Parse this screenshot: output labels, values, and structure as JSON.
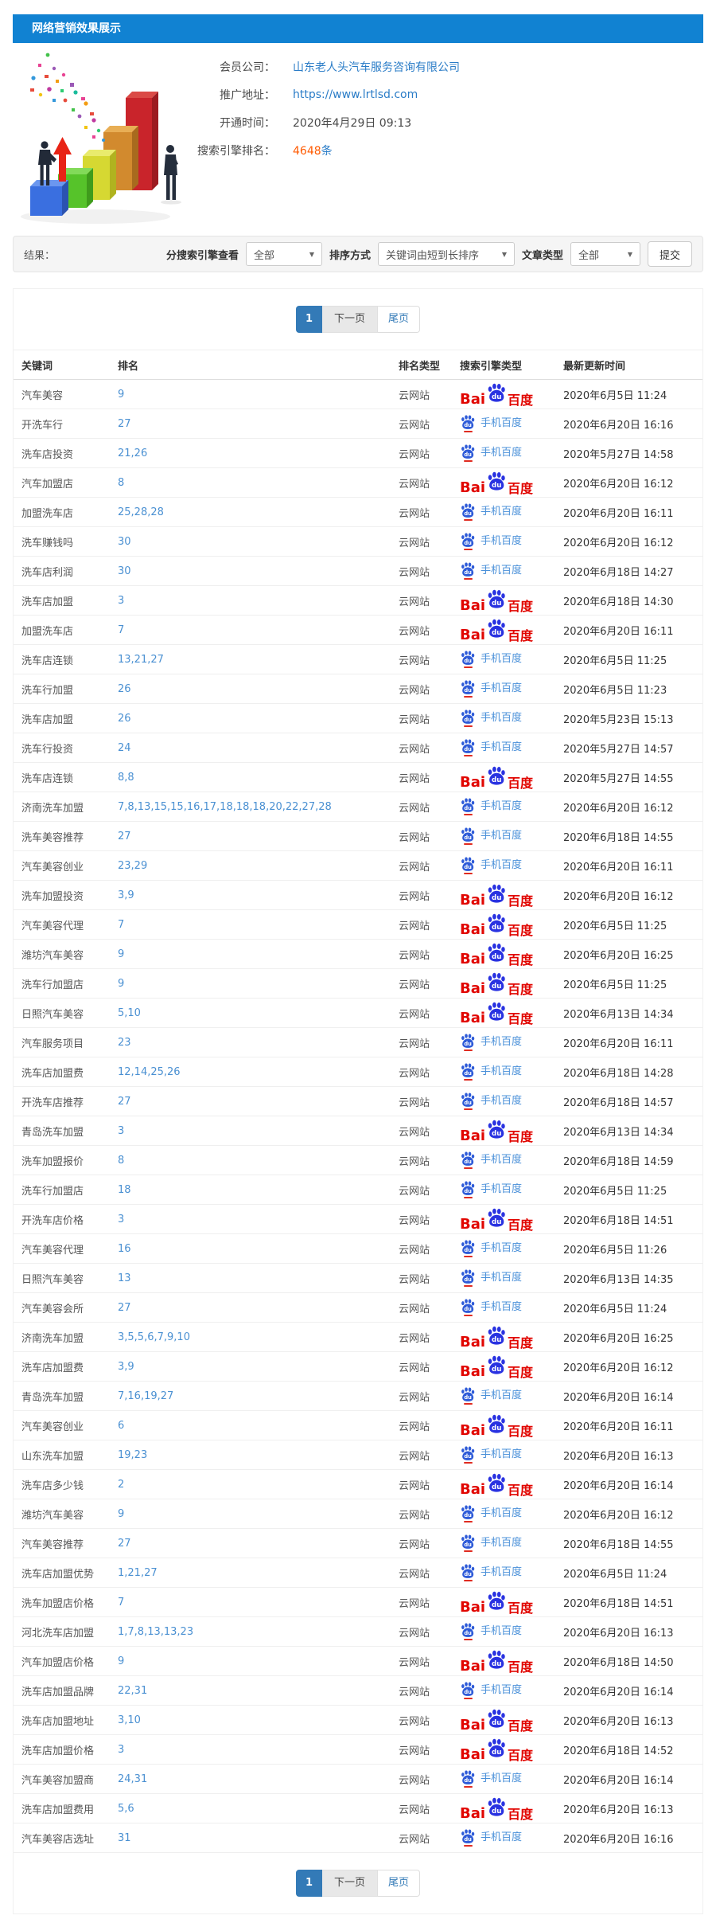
{
  "header": {
    "title": "网络营销效果展示"
  },
  "info": {
    "fields": [
      {
        "label": "会员公司：",
        "value": "山东老人头汽车服务咨询有限公司",
        "style": "link"
      },
      {
        "label": "推广地址：",
        "value": "https://www.lrtlsd.com",
        "style": "link"
      },
      {
        "label": "开通时间：",
        "value": "2020年4月29日 09:13",
        "style": "plain"
      },
      {
        "label": "搜索引擎排名：",
        "value": "4648",
        "suffix": "条",
        "style": "highlight"
      }
    ]
  },
  "filter": {
    "result_label": "结果：",
    "engine_label": "分搜索引擎查看",
    "engine_value": "全部",
    "sort_label": "排序方式",
    "sort_value": "关键词由短到长排序",
    "article_label": "文章类型",
    "article_value": "全部",
    "submit_label": "提交",
    "caret": "▼"
  },
  "pagination": {
    "current": "1",
    "next": "下一页",
    "last": "尾页"
  },
  "icons": {
    "baidu_pc_latin": "Bai",
    "baidu_pc_cn": "百度",
    "baidu_paw_du": "du",
    "baidu_mobile_label": "手机百度"
  },
  "colors": {
    "title_bar": "#1182d2",
    "link_blue": "#2a7cc7",
    "rank_blue": "#4a90d2",
    "highlight_orange": "#ff5a00",
    "baidu_red": "#e10601",
    "baidu_blue": "#2932e1",
    "pagination_active": "#337ab7"
  },
  "table": {
    "headers": [
      "关键词",
      "排名",
      "排名类型",
      "搜索引擎类型",
      "最新更新时间"
    ],
    "rows": [
      {
        "keyword": "汽车美容",
        "rank": "9",
        "type": "云网站",
        "engine": "pc",
        "time": "2020年6月5日 11:24"
      },
      {
        "keyword": "开洗车行",
        "rank": "27",
        "type": "云网站",
        "engine": "mobile",
        "time": "2020年6月20日 16:16"
      },
      {
        "keyword": "洗车店投资",
        "rank": "21,26",
        "type": "云网站",
        "engine": "mobile",
        "time": "2020年5月27日 14:58"
      },
      {
        "keyword": "汽车加盟店",
        "rank": "8",
        "type": "云网站",
        "engine": "pc",
        "time": "2020年6月20日 16:12"
      },
      {
        "keyword": "加盟洗车店",
        "rank": "25,28,28",
        "type": "云网站",
        "engine": "mobile",
        "time": "2020年6月20日 16:11"
      },
      {
        "keyword": "洗车赚钱吗",
        "rank": "30",
        "type": "云网站",
        "engine": "mobile",
        "time": "2020年6月20日 16:12"
      },
      {
        "keyword": "洗车店利润",
        "rank": "30",
        "type": "云网站",
        "engine": "mobile",
        "time": "2020年6月18日 14:27"
      },
      {
        "keyword": "洗车店加盟",
        "rank": "3",
        "type": "云网站",
        "engine": "pc",
        "time": "2020年6月18日 14:30"
      },
      {
        "keyword": "加盟洗车店",
        "rank": "7",
        "type": "云网站",
        "engine": "pc",
        "time": "2020年6月20日 16:11"
      },
      {
        "keyword": "洗车店连锁",
        "rank": "13,21,27",
        "type": "云网站",
        "engine": "mobile",
        "time": "2020年6月5日 11:25"
      },
      {
        "keyword": "洗车行加盟",
        "rank": "26",
        "type": "云网站",
        "engine": "mobile",
        "time": "2020年6月5日 11:23"
      },
      {
        "keyword": "洗车店加盟",
        "rank": "26",
        "type": "云网站",
        "engine": "mobile",
        "time": "2020年5月23日 15:13"
      },
      {
        "keyword": "洗车行投资",
        "rank": "24",
        "type": "云网站",
        "engine": "mobile",
        "time": "2020年5月27日 14:57"
      },
      {
        "keyword": "洗车店连锁",
        "rank": "8,8",
        "type": "云网站",
        "engine": "pc",
        "time": "2020年5月27日 14:55"
      },
      {
        "keyword": "济南洗车加盟",
        "rank": "7,8,13,15,15,16,17,18,18,18,20,22,27,28",
        "type": "云网站",
        "engine": "mobile",
        "time": "2020年6月20日 16:12"
      },
      {
        "keyword": "洗车美容推荐",
        "rank": "27",
        "type": "云网站",
        "engine": "mobile",
        "time": "2020年6月18日 14:55"
      },
      {
        "keyword": "汽车美容创业",
        "rank": "23,29",
        "type": "云网站",
        "engine": "mobile",
        "time": "2020年6月20日 16:11"
      },
      {
        "keyword": "洗车加盟投资",
        "rank": "3,9",
        "type": "云网站",
        "engine": "pc",
        "time": "2020年6月20日 16:12"
      },
      {
        "keyword": "汽车美容代理",
        "rank": "7",
        "type": "云网站",
        "engine": "pc",
        "time": "2020年6月5日 11:25"
      },
      {
        "keyword": "潍坊汽车美容",
        "rank": "9",
        "type": "云网站",
        "engine": "pc",
        "time": "2020年6月20日 16:25"
      },
      {
        "keyword": "洗车行加盟店",
        "rank": "9",
        "type": "云网站",
        "engine": "pc",
        "time": "2020年6月5日 11:25"
      },
      {
        "keyword": "日照汽车美容",
        "rank": "5,10",
        "type": "云网站",
        "engine": "pc",
        "time": "2020年6月13日 14:34"
      },
      {
        "keyword": "汽车服务项目",
        "rank": "23",
        "type": "云网站",
        "engine": "mobile",
        "time": "2020年6月20日 16:11"
      },
      {
        "keyword": "洗车店加盟费",
        "rank": "12,14,25,26",
        "type": "云网站",
        "engine": "mobile",
        "time": "2020年6月18日 14:28"
      },
      {
        "keyword": "开洗车店推荐",
        "rank": "27",
        "type": "云网站",
        "engine": "mobile",
        "time": "2020年6月18日 14:57"
      },
      {
        "keyword": "青岛洗车加盟",
        "rank": "3",
        "type": "云网站",
        "engine": "pc",
        "time": "2020年6月13日 14:34"
      },
      {
        "keyword": "洗车加盟报价",
        "rank": "8",
        "type": "云网站",
        "engine": "mobile",
        "time": "2020年6月18日 14:59"
      },
      {
        "keyword": "洗车行加盟店",
        "rank": "18",
        "type": "云网站",
        "engine": "mobile",
        "time": "2020年6月5日 11:25"
      },
      {
        "keyword": "开洗车店价格",
        "rank": "3",
        "type": "云网站",
        "engine": "pc",
        "time": "2020年6月18日 14:51"
      },
      {
        "keyword": "汽车美容代理",
        "rank": "16",
        "type": "云网站",
        "engine": "mobile",
        "time": "2020年6月5日 11:26"
      },
      {
        "keyword": "日照汽车美容",
        "rank": "13",
        "type": "云网站",
        "engine": "mobile",
        "time": "2020年6月13日 14:35"
      },
      {
        "keyword": "汽车美容会所",
        "rank": "27",
        "type": "云网站",
        "engine": "mobile",
        "time": "2020年6月5日 11:24"
      },
      {
        "keyword": "济南洗车加盟",
        "rank": "3,5,5,6,7,9,10",
        "type": "云网站",
        "engine": "pc",
        "time": "2020年6月20日 16:25"
      },
      {
        "keyword": "洗车店加盟费",
        "rank": "3,9",
        "type": "云网站",
        "engine": "pc",
        "time": "2020年6月20日 16:12"
      },
      {
        "keyword": "青岛洗车加盟",
        "rank": "7,16,19,27",
        "type": "云网站",
        "engine": "mobile",
        "time": "2020年6月20日 16:14"
      },
      {
        "keyword": "汽车美容创业",
        "rank": "6",
        "type": "云网站",
        "engine": "pc",
        "time": "2020年6月20日 16:11"
      },
      {
        "keyword": "山东洗车加盟",
        "rank": "19,23",
        "type": "云网站",
        "engine": "mobile",
        "time": "2020年6月20日 16:13"
      },
      {
        "keyword": "洗车店多少钱",
        "rank": "2",
        "type": "云网站",
        "engine": "pc",
        "time": "2020年6月20日 16:14"
      },
      {
        "keyword": "潍坊汽车美容",
        "rank": "9",
        "type": "云网站",
        "engine": "mobile",
        "time": "2020年6月20日 16:12"
      },
      {
        "keyword": "汽车美容推荐",
        "rank": "27",
        "type": "云网站",
        "engine": "mobile",
        "time": "2020年6月18日 14:55"
      },
      {
        "keyword": "洗车店加盟优势",
        "rank": "1,21,27",
        "type": "云网站",
        "engine": "mobile",
        "time": "2020年6月5日 11:24"
      },
      {
        "keyword": "洗车加盟店价格",
        "rank": "7",
        "type": "云网站",
        "engine": "pc",
        "time": "2020年6月18日 14:51"
      },
      {
        "keyword": "河北洗车店加盟",
        "rank": "1,7,8,13,13,23",
        "type": "云网站",
        "engine": "mobile",
        "time": "2020年6月20日 16:13"
      },
      {
        "keyword": "汽车加盟店价格",
        "rank": "9",
        "type": "云网站",
        "engine": "pc",
        "time": "2020年6月18日 14:50"
      },
      {
        "keyword": "洗车店加盟品牌",
        "rank": "22,31",
        "type": "云网站",
        "engine": "mobile",
        "time": "2020年6月20日 16:14"
      },
      {
        "keyword": "洗车店加盟地址",
        "rank": "3,10",
        "type": "云网站",
        "engine": "pc",
        "time": "2020年6月20日 16:13"
      },
      {
        "keyword": "洗车店加盟价格",
        "rank": "3",
        "type": "云网站",
        "engine": "pc",
        "time": "2020年6月18日 14:52"
      },
      {
        "keyword": "汽车美容加盟商",
        "rank": "24,31",
        "type": "云网站",
        "engine": "mobile",
        "time": "2020年6月20日 16:14"
      },
      {
        "keyword": "洗车店加盟费用",
        "rank": "5,6",
        "type": "云网站",
        "engine": "pc",
        "time": "2020年6月20日 16:13"
      },
      {
        "keyword": "汽车美容店选址",
        "rank": "31",
        "type": "云网站",
        "engine": "mobile",
        "time": "2020年6月20日 16:16"
      }
    ]
  }
}
